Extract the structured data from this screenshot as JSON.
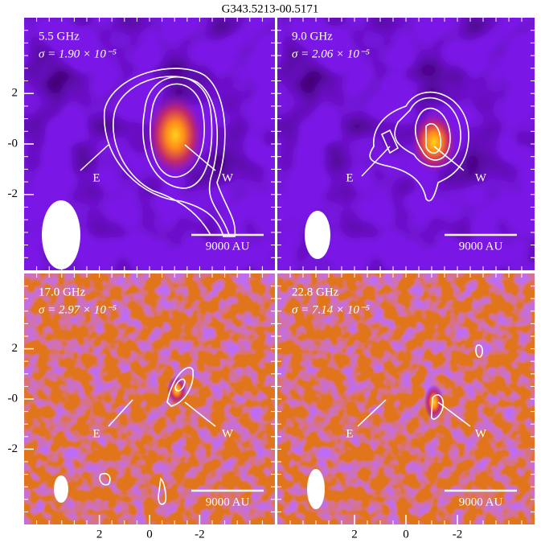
{
  "title": "G343.5213-00.5171",
  "chart_data": [
    {
      "type": "image",
      "title": "5.5 GHz",
      "subtitle": "σ = 1.90 × 10⁻⁵",
      "annotations": [
        "E",
        "W",
        "9000 AU"
      ],
      "xlim": [
        5,
        -5
      ],
      "ylim": [
        -5,
        5
      ],
      "yticks": [
        2,
        {
          "value": 0,
          "label": "-0"
        },
        -2
      ]
    },
    {
      "type": "image",
      "title": "9.0 GHz",
      "subtitle": "σ = 2.06 × 10⁻⁵",
      "annotations": [
        "E",
        "W",
        "9000 AU"
      ],
      "xlim": [
        5,
        -5
      ],
      "ylim": [
        -5,
        5
      ]
    },
    {
      "type": "image",
      "title": "17.0 GHz",
      "subtitle": "σ = 2.97 × 10⁻⁵",
      "annotations": [
        "E",
        "W",
        "9000 AU"
      ],
      "xlim": [
        5,
        -5
      ],
      "ylim": [
        -5,
        5
      ],
      "yticks": [
        2,
        {
          "value": 0,
          "label": "-0"
        },
        -2
      ],
      "xticks": [
        2,
        0,
        -2
      ]
    },
    {
      "type": "image",
      "title": "22.8 GHz",
      "subtitle": "σ = 7.14 × 10⁻⁵",
      "annotations": [
        "E",
        "W",
        "9000 AU"
      ],
      "xlim": [
        5,
        -5
      ],
      "ylim": [
        -5,
        5
      ],
      "xticks": [
        2,
        0,
        -2
      ]
    }
  ]
}
